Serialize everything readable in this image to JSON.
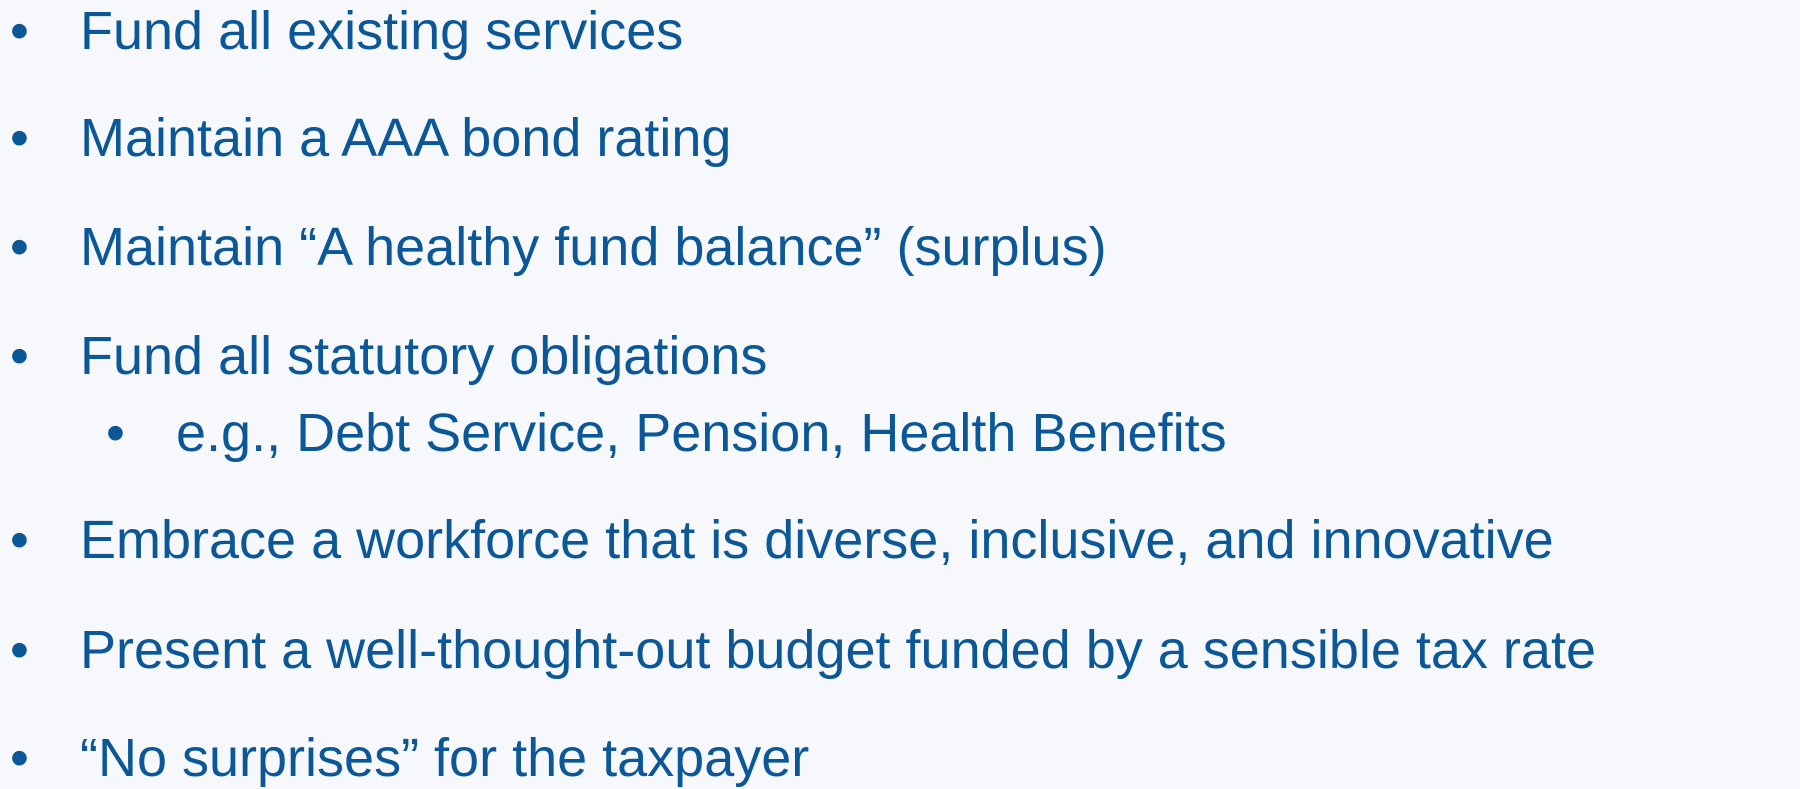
{
  "items": [
    {
      "text": "Fund all existing services"
    },
    {
      "text": "Maintain a AAA bond rating"
    },
    {
      "text": "Maintain “A healthy fund balance” (surplus)"
    },
    {
      "text": "Fund all statutory obligations",
      "subitems": [
        "e.g., Debt Service, Pension, Health Benefits"
      ]
    },
    {
      "text": "Embrace a workforce that is diverse, inclusive, and innovative"
    },
    {
      "text": "Present a well-thought-out budget funded by a sensible tax rate"
    },
    {
      "text": "“No surprises” for the taxpayer"
    }
  ]
}
